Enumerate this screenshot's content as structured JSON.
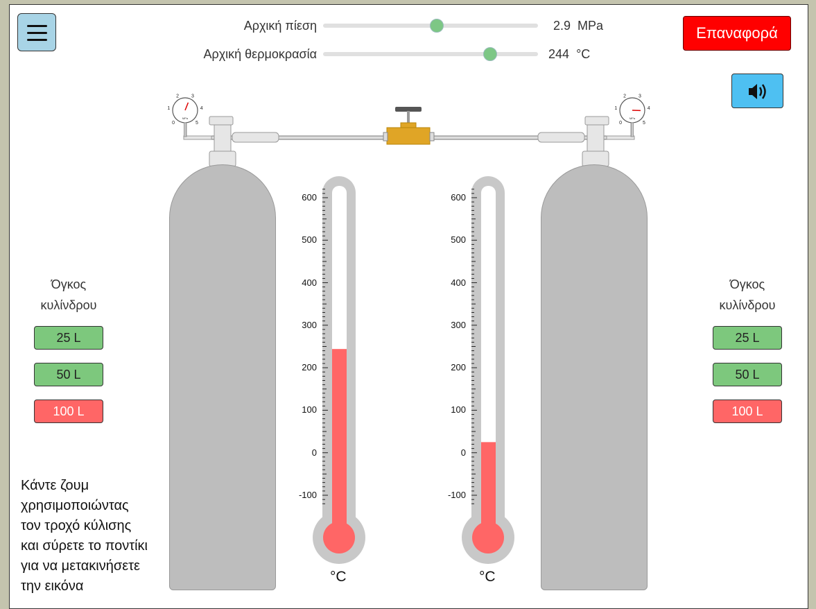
{
  "controls": {
    "pressure": {
      "label": "Αρχική πίεση",
      "value": "2.9",
      "unit": "MPa",
      "fraction": 0.55
    },
    "temperature": {
      "label": "Αρχική θερμοκρασία",
      "value": "244",
      "unit": "°C",
      "fraction": 0.77
    }
  },
  "reset_label": "Επαναφορά",
  "volume_left": {
    "label_line1": "Όγκος",
    "label_line2": "κυλίνδρου",
    "options": [
      "25 L",
      "50 L",
      "100 L"
    ],
    "selected": "100 L"
  },
  "volume_right": {
    "label_line1": "Όγκος",
    "label_line2": "κυλίνδρου",
    "options": [
      "25 L",
      "50 L",
      "100 L"
    ],
    "selected": "100 L"
  },
  "hint": [
    "Κάντε ζουμ",
    "χρησιμοποιώντας",
    "τον τροχό κύλισης",
    "και σύρετε το ποντίκι",
    "για να μετακινήσετε",
    "την εικόνα"
  ],
  "thermometers": {
    "ticks": [
      "600",
      "500",
      "400",
      "300",
      "200",
      "100",
      "0",
      "-100"
    ],
    "unit": "°C",
    "left_value": 244,
    "right_value": 25,
    "min": -100,
    "max": 600
  },
  "gauges": {
    "labels": [
      "0",
      "1",
      "2",
      "3",
      "4",
      "5"
    ],
    "unit": "MPa",
    "left_value": 2.9,
    "right_value": 4.2
  },
  "colors": {
    "fill": "#ff6666",
    "slider": "#7dc785",
    "reset": "#ff0000",
    "sound": "#4ec0f2",
    "valve": "#e0a526"
  }
}
